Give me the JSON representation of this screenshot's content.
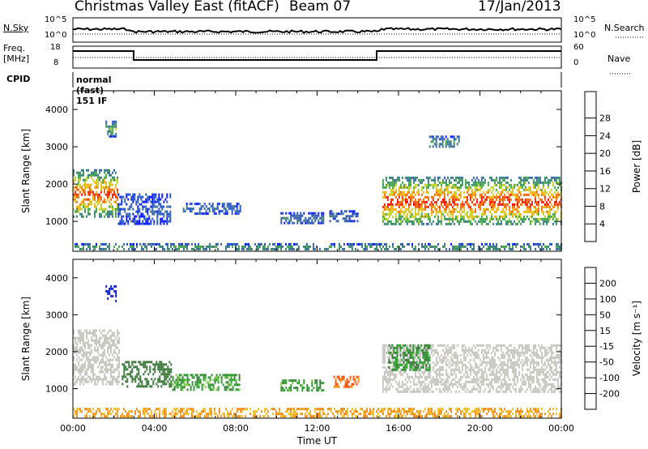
{
  "header": {
    "station": "Christmas Valley East (fitACF)",
    "beam": "Beam 07",
    "date": "17/Jan/2013"
  },
  "top_panels": {
    "nsky_label": "N.Sky",
    "nsky_top_tick": "10^5",
    "nsky_bottom_tick": "10^0",
    "nsearch_label": "N.Search",
    "freq_label": "Freq.",
    "freq_unit": "[MHz]",
    "freq_top_tick": "18",
    "freq_bottom_tick": "8",
    "nave_label": "Nave",
    "nave_top_tick": "60",
    "nave_bottom_tick": "0",
    "cpid_label": "CPID",
    "cpid_value": "normal (fast) 151 IF"
  },
  "chart_data": [
    {
      "type": "heatmap",
      "name": "power",
      "ylabel": "Slant Range [km]",
      "ylim": [
        200,
        4500
      ],
      "yticks": [
        "1000",
        "2000",
        "3000",
        "4000"
      ],
      "xlim": [
        0,
        24
      ],
      "colorbar": {
        "label": "Power [dB]",
        "ticks": [
          "4",
          "8",
          "12",
          "16",
          "20",
          "24",
          "28"
        ],
        "colors": [
          "#0a1aff",
          "#2a55c8",
          "#3f6e9e",
          "#3d8a72",
          "#4aa84a",
          "#c8d22e",
          "#f5b418",
          "#f07010",
          "#e43010",
          "#ff0000"
        ]
      },
      "regions": [
        {
          "t0": 0.0,
          "t1": 2.2,
          "r0": 1100,
          "r1": 2400,
          "level": 0.85
        },
        {
          "t0": 1.6,
          "t1": 2.1,
          "r0": 3300,
          "r1": 3700,
          "level": 0.5
        },
        {
          "t0": 2.2,
          "t1": 4.8,
          "r0": 950,
          "r1": 1750,
          "level": 0.15
        },
        {
          "t0": 5.4,
          "t1": 8.2,
          "r0": 1200,
          "r1": 1500,
          "level": 0.2
        },
        {
          "t0": 10.2,
          "t1": 12.3,
          "r0": 950,
          "r1": 1250,
          "level": 0.25
        },
        {
          "t0": 12.6,
          "t1": 14.0,
          "r0": 1000,
          "r1": 1300,
          "level": 0.2
        },
        {
          "t0": 15.2,
          "t1": 24.0,
          "r0": 900,
          "r1": 2200,
          "level": 0.9
        },
        {
          "t0": 17.5,
          "t1": 19.0,
          "r0": 3000,
          "r1": 3300,
          "level": 0.35
        },
        {
          "t0": 0.0,
          "t1": 24.0,
          "r0": 250,
          "r1": 420,
          "level": 0.45
        }
      ]
    },
    {
      "type": "heatmap",
      "name": "velocity",
      "ylabel": "Slant Range [km]",
      "ylim": [
        200,
        4500
      ],
      "yticks": [
        "1000",
        "2000",
        "3000",
        "4000"
      ],
      "xlabel": "Time UT",
      "xlim": [
        0,
        24
      ],
      "xticks": [
        "00:00",
        "04:00",
        "08:00",
        "12:00",
        "16:00",
        "20:00",
        "00:00"
      ],
      "colorbar": {
        "label": "Velocity [m s⁻¹]",
        "ticks": [
          "200",
          "100",
          "50",
          "15",
          "-15",
          "-50",
          "-100",
          "-200"
        ],
        "colors": [
          "#1020d0",
          "#2a55c8",
          "#3a7a3a",
          "#2fa030",
          "#7cd040",
          "#c8c8c0",
          "#f0c030",
          "#f09020",
          "#f05010",
          "#e01010"
        ]
      },
      "regions": [
        {
          "t0": 0.0,
          "t1": 2.3,
          "r0": 1100,
          "r1": 2600,
          "value": 0
        },
        {
          "t0": 1.6,
          "t1": 2.1,
          "r0": 3400,
          "r1": 3800,
          "value": 180
        },
        {
          "t0": 2.4,
          "t1": 4.8,
          "r0": 1050,
          "r1": 1750,
          "value": 60
        },
        {
          "t0": 4.8,
          "t1": 8.2,
          "r0": 1000,
          "r1": 1400,
          "value": 30
        },
        {
          "t0": 10.2,
          "t1": 12.3,
          "r0": 950,
          "r1": 1250,
          "value": 30
        },
        {
          "t0": 12.8,
          "t1": 14.0,
          "r0": 1050,
          "r1": 1350,
          "value": -100
        },
        {
          "t0": 15.2,
          "t1": 24.0,
          "r0": 900,
          "r1": 2200,
          "value": 0
        },
        {
          "t0": 15.5,
          "t1": 17.5,
          "r0": 1500,
          "r1": 2200,
          "value": 40
        },
        {
          "t0": 0.0,
          "t1": 24.0,
          "r0": 250,
          "r1": 480,
          "value": -50
        }
      ]
    }
  ]
}
